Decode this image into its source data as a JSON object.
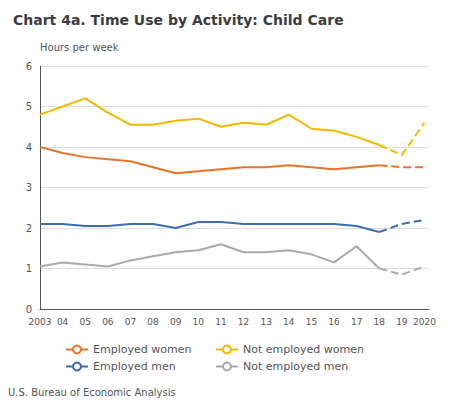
{
  "chart_data": {
    "type": "line",
    "title": "Chart 4a. Time Use by Activity: Child Care",
    "ylabel": "Hours per week",
    "annotations": [
      "U.S. Bureau of Economic Analysis"
    ],
    "x": [
      2003,
      2004,
      2005,
      2006,
      2007,
      2008,
      2009,
      2010,
      2011,
      2012,
      2013,
      2014,
      2015,
      2016,
      2017,
      2018,
      2019,
      2020
    ],
    "xlim": [
      2003,
      2020.2
    ],
    "xticks": [
      2003,
      {
        "value": 2004,
        "label": "04"
      },
      {
        "value": 2005,
        "label": "05"
      },
      {
        "value": 2006,
        "label": "06"
      },
      {
        "value": 2007,
        "label": "07"
      },
      {
        "value": 2008,
        "label": "08"
      },
      {
        "value": 2009,
        "label": "09"
      },
      {
        "value": 2010,
        "label": "10"
      },
      {
        "value": 2011,
        "label": "11"
      },
      {
        "value": 2012,
        "label": "12"
      },
      {
        "value": 2013,
        "label": "13"
      },
      {
        "value": 2014,
        "label": "14"
      },
      {
        "value": 2015,
        "label": "15"
      },
      {
        "value": 2016,
        "label": "16"
      },
      {
        "value": 2017,
        "label": "17"
      },
      {
        "value": 2018,
        "label": "18"
      },
      {
        "value": 2019,
        "label": "19"
      },
      2020
    ],
    "ylim": [
      0,
      6
    ],
    "yticks": [
      0,
      1,
      2,
      3,
      4,
      5,
      6
    ],
    "grid": true,
    "legend": "bottom",
    "series": [
      {
        "name": "Employed women",
        "color": "#E8742A",
        "line_style": "solid",
        "values": [
          4.0,
          3.85,
          3.75,
          3.7,
          3.65,
          3.5,
          3.35,
          3.4,
          3.45,
          3.5,
          3.5,
          3.55,
          3.5,
          3.45,
          3.5,
          3.55,
          null,
          null
        ]
      },
      {
        "name": "Employed women",
        "color": "#E8742A",
        "line_style": "dashed",
        "values": [
          null,
          null,
          null,
          null,
          null,
          null,
          null,
          null,
          null,
          null,
          null,
          null,
          null,
          null,
          null,
          3.55,
          3.5,
          3.5
        ]
      },
      {
        "name": "Not employed women",
        "color": "#F5B800",
        "line_style": "solid",
        "values": [
          4.8,
          5.0,
          5.2,
          4.85,
          4.55,
          4.55,
          4.65,
          4.7,
          4.5,
          4.6,
          4.55,
          4.8,
          4.45,
          4.4,
          4.25,
          4.05,
          null,
          null
        ]
      },
      {
        "name": "Not employed women",
        "color": "#F5B800",
        "line_style": "dashed",
        "values": [
          null,
          null,
          null,
          null,
          null,
          null,
          null,
          null,
          null,
          null,
          null,
          null,
          null,
          null,
          null,
          4.05,
          3.8,
          4.6
        ]
      },
      {
        "name": "Employed men",
        "color": "#3C6DB0",
        "line_style": "solid",
        "values": [
          2.1,
          2.1,
          2.05,
          2.05,
          2.1,
          2.1,
          2.0,
          2.15,
          2.15,
          2.1,
          2.1,
          2.1,
          2.1,
          2.1,
          2.05,
          1.9,
          null,
          null
        ]
      },
      {
        "name": "Employed men",
        "color": "#3C6DB0",
        "line_style": "dashed",
        "values": [
          null,
          null,
          null,
          null,
          null,
          null,
          null,
          null,
          null,
          null,
          null,
          null,
          null,
          null,
          null,
          1.9,
          2.1,
          2.2
        ]
      },
      {
        "name": "Not employed men",
        "color": "#AAAAAA",
        "line_style": "solid",
        "values": [
          1.05,
          1.15,
          1.1,
          1.05,
          1.2,
          1.3,
          1.4,
          1.45,
          1.6,
          1.4,
          1.4,
          1.45,
          1.35,
          1.15,
          1.55,
          1.0,
          null,
          null
        ]
      },
      {
        "name": "Not employed men",
        "color": "#AAAAAA",
        "line_style": "dashed",
        "values": [
          null,
          null,
          null,
          null,
          null,
          null,
          null,
          null,
          null,
          null,
          null,
          null,
          null,
          null,
          null,
          1.0,
          0.85,
          1.05
        ]
      }
    ]
  }
}
